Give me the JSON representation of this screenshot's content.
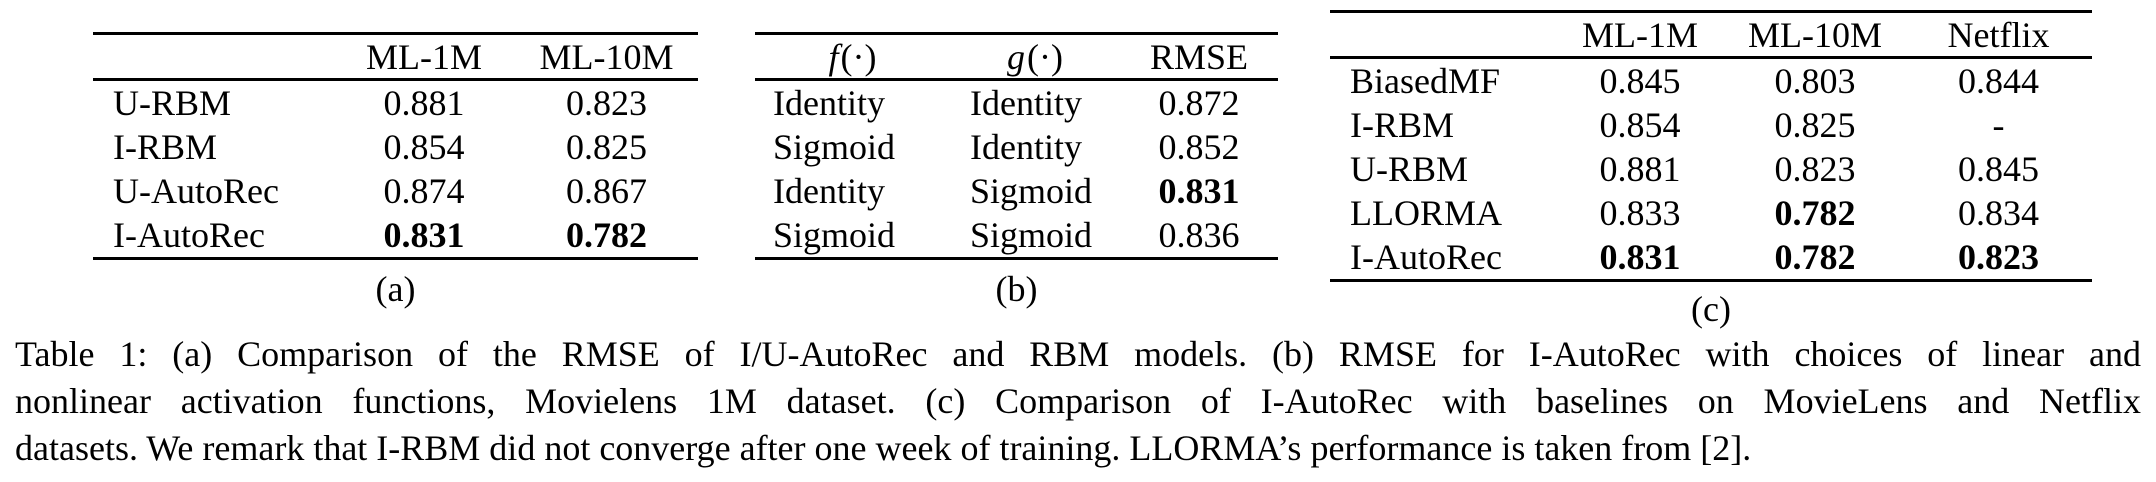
{
  "figure": {
    "subtables": [
      {
        "name": "a",
        "caption_label": "(a)",
        "columns": [
          "",
          "ML-1M",
          "ML-10M"
        ],
        "rows": [
          {
            "cells": [
              {
                "t": "U-RBM"
              },
              {
                "t": "0.881"
              },
              {
                "t": "0.823"
              }
            ]
          },
          {
            "cells": [
              {
                "t": "I-RBM"
              },
              {
                "t": "0.854"
              },
              {
                "t": "0.825"
              }
            ]
          },
          {
            "cells": [
              {
                "t": "U-AutoRec"
              },
              {
                "t": "0.874"
              },
              {
                "t": "0.867"
              }
            ]
          },
          {
            "cells": [
              {
                "t": "I-AutoRec"
              },
              {
                "t": "0.831",
                "b": true
              },
              {
                "t": "0.782",
                "b": true
              }
            ]
          }
        ]
      },
      {
        "name": "b",
        "caption_label": "(b)",
        "columns": [
          {
            "var": "f",
            "args": "(·)"
          },
          {
            "var": "g",
            "args": "(·)"
          },
          "RMSE"
        ],
        "rows": [
          {
            "cells": [
              {
                "t": "Identity"
              },
              {
                "t": "Identity"
              },
              {
                "t": "0.872"
              }
            ]
          },
          {
            "cells": [
              {
                "t": "Sigmoid"
              },
              {
                "t": "Identity"
              },
              {
                "t": "0.852"
              }
            ]
          },
          {
            "cells": [
              {
                "t": "Identity"
              },
              {
                "t": "Sigmoid"
              },
              {
                "t": "0.831",
                "b": true
              }
            ]
          },
          {
            "cells": [
              {
                "t": "Sigmoid"
              },
              {
                "t": "Sigmoid"
              },
              {
                "t": "0.836"
              }
            ]
          }
        ]
      },
      {
        "name": "c",
        "caption_label": "(c)",
        "columns": [
          "",
          "ML-1M",
          "ML-10M",
          "Netflix"
        ],
        "rows": [
          {
            "cells": [
              {
                "t": "BiasedMF"
              },
              {
                "t": "0.845"
              },
              {
                "t": "0.803"
              },
              {
                "t": "0.844"
              }
            ]
          },
          {
            "cells": [
              {
                "t": "I-RBM"
              },
              {
                "t": "0.854"
              },
              {
                "t": "0.825"
              },
              {
                "t": "-"
              }
            ]
          },
          {
            "cells": [
              {
                "t": "U-RBM"
              },
              {
                "t": "0.881"
              },
              {
                "t": "0.823"
              },
              {
                "t": "0.845"
              }
            ]
          },
          {
            "cells": [
              {
                "t": "LLORMA"
              },
              {
                "t": "0.833"
              },
              {
                "t": "0.782",
                "b": true
              },
              {
                "t": "0.834"
              }
            ]
          },
          {
            "cells": [
              {
                "t": "I-AutoRec"
              },
              {
                "t": "0.831",
                "b": true
              },
              {
                "t": "0.782",
                "b": true
              },
              {
                "t": "0.823",
                "b": true
              }
            ]
          }
        ]
      }
    ],
    "caption": {
      "lines": [
        "Table 1: (a) Comparison of the RMSE of I/U-AutoRec and RBM models. (b) RMSE for I-AutoRec with choices of linear and",
        "nonlinear activation functions, Movielens 1M dataset. (c) Comparison of I-AutoRec with baselines on MovieLens and Netflix",
        "datasets. We remark that I-RBM did not converge after one week of training. LLORMA’s performance is taken from [2]."
      ]
    },
    "colors": {
      "text": "#000000",
      "background": "#ffffff",
      "rule": "#000000"
    }
  }
}
